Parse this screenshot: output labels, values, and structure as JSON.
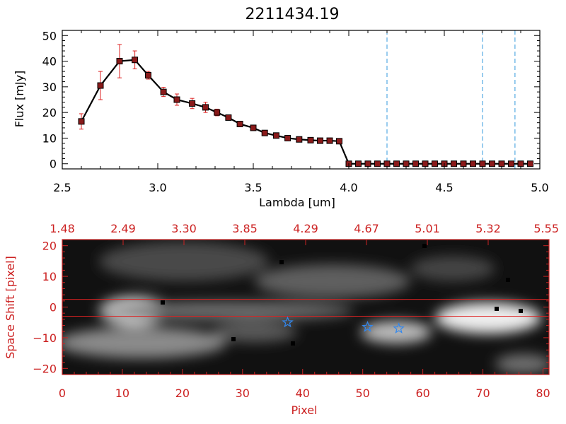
{
  "title": "2211434.19",
  "colors": {
    "axis_black": "#000000",
    "axis_red": "#cc2222",
    "error_bar": "#dd2222",
    "marker_fill": "#8a1a1a",
    "dashed_line": "#3399dd",
    "star": "#3388ee",
    "red_line": "#dd2222"
  },
  "chart_data": [
    {
      "type": "line",
      "title": "2211434.19",
      "xlabel": "Lambda [um]",
      "ylabel": "Flux [mJy]",
      "xlim": [
        2.5,
        5.0
      ],
      "ylim": [
        -2,
        52
      ],
      "xticks": [
        2.5,
        3.0,
        3.5,
        4.0,
        4.5,
        5.0
      ],
      "xtick_labels": [
        "2.5",
        "3.0",
        "3.5",
        "4.0",
        "4.5",
        "5.0"
      ],
      "yticks": [
        0,
        10,
        20,
        30,
        40,
        50
      ],
      "ytick_labels": [
        "0",
        "10",
        "20",
        "30",
        "40",
        "50"
      ],
      "x": [
        2.6,
        2.7,
        2.8,
        2.88,
        2.95,
        3.03,
        3.1,
        3.18,
        3.25,
        3.31,
        3.37,
        3.43,
        3.5,
        3.56,
        3.62,
        3.68,
        3.74,
        3.8,
        3.85,
        3.9,
        3.95,
        4.0,
        4.05,
        4.1,
        4.15,
        4.2,
        4.25,
        4.3,
        4.35,
        4.4,
        4.45,
        4.5,
        4.55,
        4.6,
        4.65,
        4.7,
        4.75,
        4.8,
        4.85,
        4.9,
        4.95
      ],
      "y": [
        16.5,
        30.5,
        40,
        40.5,
        34.5,
        28,
        25,
        23.5,
        22,
        20,
        18,
        15.5,
        14,
        12,
        11,
        10,
        9.5,
        9.2,
        9,
        9,
        8.8,
        0,
        0,
        0,
        0,
        0,
        0,
        0,
        0,
        0,
        0,
        0,
        0,
        0,
        0,
        0,
        0,
        0,
        0,
        0,
        0
      ],
      "yerr": [
        3,
        5.5,
        6.5,
        3.5,
        1.5,
        1.8,
        2.2,
        2.0,
        2.0,
        1.3,
        0.8,
        0.8,
        0.5,
        0.5,
        0.5,
        0.4,
        0.4,
        0.3,
        0.3,
        0.3,
        0.4,
        0,
        0,
        0,
        0,
        0,
        0,
        0,
        0,
        0,
        0,
        0,
        0,
        0,
        0,
        0,
        0,
        0,
        0,
        0,
        0
      ],
      "vlines": [
        4.2,
        4.7,
        4.87
      ],
      "grid": false
    },
    {
      "type": "heatmap",
      "xlabel": "Pixel",
      "ylabel": "Space Shift [pixel]",
      "top_axis_labels": [
        "1.48",
        "2.49",
        "3.30",
        "3.85",
        "4.29",
        "4.67",
        "5.01",
        "5.32",
        "5.55"
      ],
      "xlim": [
        0,
        81
      ],
      "ylim": [
        -22,
        22
      ],
      "xticks": [
        0,
        10,
        20,
        30,
        40,
        50,
        60,
        70,
        80
      ],
      "xtick_labels": [
        "0",
        "10",
        "20",
        "30",
        "40",
        "50",
        "60",
        "70",
        "80"
      ],
      "yticks": [
        -20,
        -10,
        0,
        10,
        20
      ],
      "ytick_labels": [
        "−20",
        "−10",
        "0",
        "10",
        "20"
      ],
      "hlines": [
        2.5,
        -3.0
      ],
      "stars": [
        {
          "x": 37.5,
          "y": -5
        },
        {
          "x": 50.8,
          "y": -6.5
        },
        {
          "x": 56,
          "y": -7
        }
      ],
      "colormap": "grayscale"
    }
  ]
}
